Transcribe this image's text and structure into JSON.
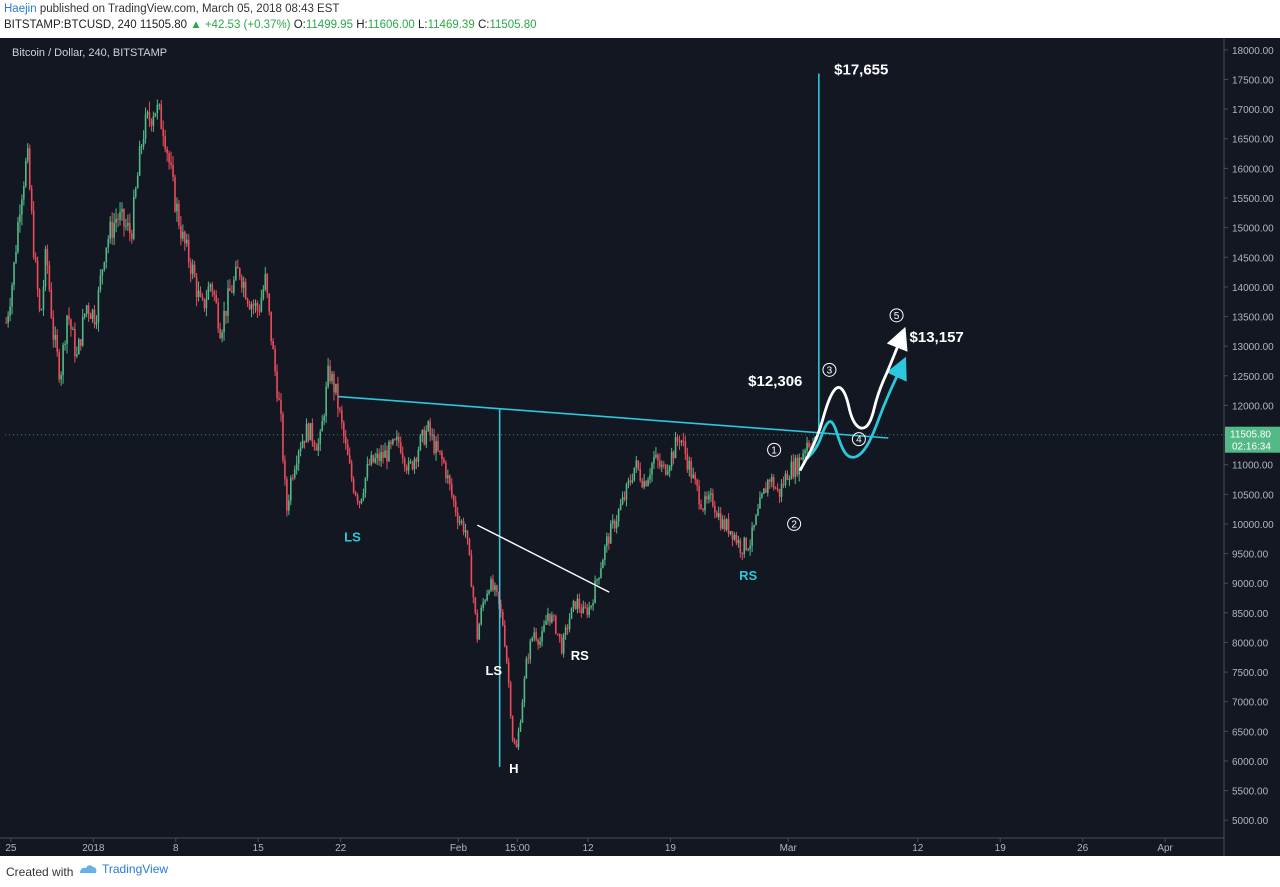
{
  "header": {
    "author": "Haejin",
    "published": "published on TradingView.com, March 05, 2018 08:43 EST",
    "symbol": "BITSTAMP:BTCUSD, 240",
    "last": "11505.80",
    "change": "+42.53 (+0.37%)",
    "o_label": "O:",
    "o_value": "11499.95",
    "h_label": "H:",
    "h_value": "11606.00",
    "l_label": "L:",
    "l_value": "11469.39",
    "c_label": "C:",
    "c_value": "11505.80"
  },
  "footer": {
    "created_with": "Created with",
    "brand": "TradingView"
  },
  "colors": {
    "background": "#131722",
    "up_candle": "#53b987",
    "down_candle": "#eb4d5c",
    "cyan": "#2bc8db",
    "white": "#ffffff",
    "price_tag": "#53b987"
  },
  "chart_data": {
    "type": "candlestick",
    "title": "Bitcoin / Dollar, 240, BITSTAMP",
    "ylim": [
      4700,
      18200
    ],
    "y_ticks": [
      18000,
      17500,
      17000,
      16500,
      16000,
      15500,
      15000,
      14500,
      14000,
      13500,
      13000,
      12500,
      12000,
      11500,
      11000,
      10500,
      10000,
      9500,
      9000,
      8500,
      8000,
      7500,
      7000,
      6500,
      6000,
      5500,
      5000
    ],
    "x_tick_labels": [
      "25",
      "2018",
      "8",
      "15",
      "22",
      "Feb",
      "15:00",
      "12",
      "19",
      "Mar",
      "12",
      "19",
      "26",
      "Apr"
    ],
    "x_tick_days": [
      -7,
      0,
      7,
      14,
      21,
      31,
      36,
      42,
      49,
      59,
      70,
      77,
      84,
      91
    ],
    "xlim_days": [
      -7.5,
      96
    ],
    "price_path": [
      {
        "day": -7.4,
        "price": 13400
      },
      {
        "day": -6.8,
        "price": 14200
      },
      {
        "day": -6.2,
        "price": 15500
      },
      {
        "day": -5.6,
        "price": 16200
      },
      {
        "day": -5.0,
        "price": 14500
      },
      {
        "day": -4.5,
        "price": 13400
      },
      {
        "day": -4.0,
        "price": 14600
      },
      {
        "day": -3.4,
        "price": 13200
      },
      {
        "day": -2.8,
        "price": 12500
      },
      {
        "day": -2.2,
        "price": 13600
      },
      {
        "day": -1.4,
        "price": 12800
      },
      {
        "day": -0.6,
        "price": 13700
      },
      {
        "day": 0.2,
        "price": 13500
      },
      {
        "day": 1.0,
        "price": 14700
      },
      {
        "day": 2.0,
        "price": 15200
      },
      {
        "day": 3.2,
        "price": 14900
      },
      {
        "day": 4.2,
        "price": 16600
      },
      {
        "day": 5.2,
        "price": 17050
      },
      {
        "day": 6.0,
        "price": 16700
      },
      {
        "day": 6.8,
        "price": 15600
      },
      {
        "day": 7.6,
        "price": 14800
      },
      {
        "day": 8.4,
        "price": 14300
      },
      {
        "day": 9.2,
        "price": 13600
      },
      {
        "day": 10.0,
        "price": 14100
      },
      {
        "day": 10.8,
        "price": 13300
      },
      {
        "day": 11.6,
        "price": 13900
      },
      {
        "day": 12.4,
        "price": 14300
      },
      {
        "day": 13.2,
        "price": 13800
      },
      {
        "day": 14.0,
        "price": 13600
      },
      {
        "day": 14.6,
        "price": 14100
      },
      {
        "day": 15.3,
        "price": 12800
      },
      {
        "day": 15.9,
        "price": 11800
      },
      {
        "day": 16.4,
        "price": 10200
      },
      {
        "day": 16.8,
        "price": 10800
      },
      {
        "day": 17.4,
        "price": 11300
      },
      {
        "day": 18.2,
        "price": 11600
      },
      {
        "day": 19.2,
        "price": 11300
      },
      {
        "day": 20.0,
        "price": 12600
      },
      {
        "day": 20.6,
        "price": 12200
      },
      {
        "day": 21.4,
        "price": 11300
      },
      {
        "day": 22.0,
        "price": 10700
      },
      {
        "day": 22.6,
        "price": 10400
      },
      {
        "day": 23.4,
        "price": 11000
      },
      {
        "day": 24.2,
        "price": 11100
      },
      {
        "day": 25.0,
        "price": 11200
      },
      {
        "day": 26.0,
        "price": 11400
      },
      {
        "day": 26.8,
        "price": 10900
      },
      {
        "day": 27.6,
        "price": 11300
      },
      {
        "day": 28.4,
        "price": 11600
      },
      {
        "day": 29.2,
        "price": 11200
      },
      {
        "day": 29.8,
        "price": 11000
      },
      {
        "day": 30.4,
        "price": 10500
      },
      {
        "day": 31.0,
        "price": 10100
      },
      {
        "day": 31.6,
        "price": 9900
      },
      {
        "day": 32.2,
        "price": 8900
      },
      {
        "day": 32.6,
        "price": 8100
      },
      {
        "day": 33.0,
        "price": 8600
      },
      {
        "day": 33.6,
        "price": 9000
      },
      {
        "day": 34.2,
        "price": 8800
      },
      {
        "day": 34.8,
        "price": 8300
      },
      {
        "day": 35.2,
        "price": 7500
      },
      {
        "day": 35.6,
        "price": 6400
      },
      {
        "day": 35.9,
        "price": 6150
      },
      {
        "day": 36.3,
        "price": 6800
      },
      {
        "day": 36.8,
        "price": 7700
      },
      {
        "day": 37.4,
        "price": 8200
      },
      {
        "day": 38.0,
        "price": 8000
      },
      {
        "day": 38.6,
        "price": 8500
      },
      {
        "day": 39.2,
        "price": 8300
      },
      {
        "day": 39.8,
        "price": 7900
      },
      {
        "day": 40.4,
        "price": 8400
      },
      {
        "day": 41.0,
        "price": 8700
      },
      {
        "day": 41.6,
        "price": 8500
      },
      {
        "day": 42.2,
        "price": 8600
      },
      {
        "day": 42.8,
        "price": 9100
      },
      {
        "day": 43.6,
        "price": 9700
      },
      {
        "day": 44.4,
        "price": 10100
      },
      {
        "day": 45.2,
        "price": 10500
      },
      {
        "day": 46.0,
        "price": 11000
      },
      {
        "day": 46.8,
        "price": 10700
      },
      {
        "day": 47.6,
        "price": 11100
      },
      {
        "day": 48.4,
        "price": 10900
      },
      {
        "day": 49.2,
        "price": 11200
      },
      {
        "day": 49.8,
        "price": 11500
      },
      {
        "day": 50.4,
        "price": 11100
      },
      {
        "day": 51.0,
        "price": 10700
      },
      {
        "day": 51.8,
        "price": 10300
      },
      {
        "day": 52.6,
        "price": 10400
      },
      {
        "day": 53.4,
        "price": 10000
      },
      {
        "day": 54.2,
        "price": 9900
      },
      {
        "day": 55.0,
        "price": 9600
      },
      {
        "day": 55.8,
        "price": 9700
      },
      {
        "day": 56.6,
        "price": 10300
      },
      {
        "day": 57.4,
        "price": 10800
      },
      {
        "day": 58.2,
        "price": 10500
      },
      {
        "day": 59.0,
        "price": 10900
      },
      {
        "day": 59.8,
        "price": 11000
      },
      {
        "day": 60.6,
        "price": 11400
      },
      {
        "day": 61.4,
        "price": 11350
      }
    ],
    "cyan_neckline": {
      "from": {
        "day": 20.8,
        "price": 12150
      },
      "to": {
        "day": 67.5,
        "price": 11450
      }
    },
    "cyan_vertical_left": {
      "day": 34.5,
      "top": 11950,
      "bottom": 5900
    },
    "cyan_vertical_right": {
      "day": 61.6,
      "top": 17600,
      "bottom": 11600
    },
    "white_neckline": {
      "from": {
        "day": 32.6,
        "price": 9980
      },
      "to": {
        "day": 43.8,
        "price": 8850
      }
    },
    "white_projection": [
      {
        "day": 60.0,
        "price": 10900
      },
      {
        "day": 61.5,
        "price": 11450
      },
      {
        "day": 62.4,
        "price": 12100
      },
      {
        "day": 63.2,
        "price": 12350
      },
      {
        "day": 63.9,
        "price": 12200
      },
      {
        "day": 64.4,
        "price": 11750
      },
      {
        "day": 65.2,
        "price": 11580
      },
      {
        "day": 66.0,
        "price": 11700
      },
      {
        "day": 66.6,
        "price": 12200
      },
      {
        "day": 67.6,
        "price": 12650
      },
      {
        "day": 68.6,
        "price": 13150
      }
    ],
    "cyan_projection": [
      {
        "day": 60.6,
        "price": 11100
      },
      {
        "day": 61.5,
        "price": 11300
      },
      {
        "day": 62.2,
        "price": 11700
      },
      {
        "day": 62.8,
        "price": 11750
      },
      {
        "day": 63.5,
        "price": 11300
      },
      {
        "day": 64.1,
        "price": 11120
      },
      {
        "day": 65.0,
        "price": 11130
      },
      {
        "day": 66.0,
        "price": 11400
      },
      {
        "day": 67.2,
        "price": 12050
      },
      {
        "day": 68.6,
        "price": 12650
      }
    ],
    "annotations": [
      {
        "text": "$17,655",
        "day": 62.9,
        "price": 17580,
        "color": "white"
      },
      {
        "text": "$13,157",
        "day": 69.3,
        "price": 13070,
        "color": "white"
      },
      {
        "text": "$12,306",
        "day": 55.6,
        "price": 12330,
        "color": "white"
      },
      {
        "text": "LS",
        "day": 22.0,
        "price": 9700,
        "color": "cyan"
      },
      {
        "text": "RS",
        "day": 55.6,
        "price": 9050,
        "color": "cyan"
      },
      {
        "text": "LS",
        "day": 34.0,
        "price": 7450,
        "color": "white"
      },
      {
        "text": "H",
        "day": 35.7,
        "price": 5800,
        "color": "white"
      },
      {
        "text": "RS",
        "day": 41.3,
        "price": 7700,
        "color": "white"
      }
    ],
    "wave_labels": [
      {
        "text": "1",
        "day": 57.8,
        "price": 11250
      },
      {
        "text": "2",
        "day": 59.5,
        "price": 10000
      },
      {
        "text": "3",
        "day": 62.5,
        "price": 12600
      },
      {
        "text": "4",
        "day": 65.0,
        "price": 11430
      },
      {
        "text": "5",
        "day": 68.2,
        "price": 13520
      }
    ],
    "current_price_label": "11505.80",
    "countdown_label": "02:16:34",
    "current_price": 11505.8
  }
}
